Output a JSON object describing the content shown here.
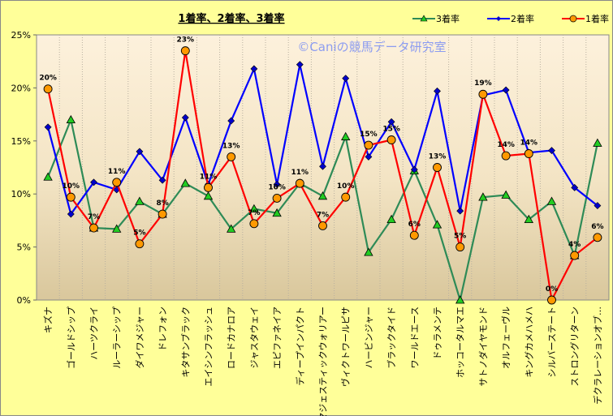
{
  "chart_data": {
    "type": "line",
    "title": "1着率、2着率、3着率",
    "watermark": "©Caniの競馬データ研究室",
    "xlabel": "",
    "ylabel": "",
    "ylim": [
      0,
      25
    ],
    "yticks": [
      "0%",
      "5%",
      "10%",
      "15%",
      "20%",
      "25%"
    ],
    "grid": "vertical dotted",
    "legend_position": "top-right",
    "categories": [
      "キズナ",
      "ゴールドシップ",
      "ハーツクライ",
      "ルーラーシップ",
      "ダイワメジャー",
      "ドレフォン",
      "キタサンブラック",
      "エイシンフラッシュ",
      "ロードカナロア",
      "ジャスタウェイ",
      "エピファネイア",
      "ディープインパクト",
      "マジェスティックウォリアー",
      "ヴィクトワールピサ",
      "ハービンジャー",
      "ブラックタイド",
      "ワールドエース",
      "ドゥラメンテ",
      "ホッコータルマエ",
      "サトノダイヤモンド",
      "オルフェーヴル",
      "キングカメハメハ",
      "シルバーステート",
      "ストロングリターン",
      "デクラレーションオブ…"
    ],
    "series": [
      {
        "name": "3着率",
        "color": "#2e8b57",
        "marker": "triangle",
        "marker_color": "#22cc22",
        "values": [
          11.6,
          17.0,
          6.8,
          6.7,
          9.3,
          8.1,
          11.0,
          9.8,
          6.7,
          8.6,
          8.2,
          11.0,
          9.8,
          15.4,
          4.5,
          7.6,
          12.2,
          7.1,
          0.0,
          9.7,
          9.9,
          7.6,
          9.3,
          4.2,
          14.8
        ]
      },
      {
        "name": "2着率",
        "color": "#0000ff",
        "marker": "diamond",
        "marker_color": "#0000cc",
        "values": [
          16.3,
          8.1,
          11.1,
          10.4,
          14.0,
          11.3,
          17.2,
          10.9,
          16.9,
          21.8,
          10.9,
          22.2,
          12.6,
          20.9,
          13.5,
          16.8,
          12.3,
          19.7,
          8.4,
          19.3,
          19.8,
          13.9,
          14.1,
          10.6,
          8.9
        ]
      },
      {
        "name": "1着率",
        "color": "#ff0000",
        "marker": "circle",
        "marker_color": "#ff9900",
        "values": [
          19.9,
          9.7,
          6.8,
          11.1,
          5.3,
          8.1,
          23.5,
          10.6,
          13.5,
          7.2,
          9.6,
          11.0,
          7.0,
          9.7,
          14.6,
          15.1,
          6.1,
          12.5,
          5.0,
          19.4,
          13.6,
          13.8,
          0.0,
          4.2,
          5.9
        ],
        "data_labels": [
          "20%",
          "10%",
          "7%",
          "11%",
          "5%",
          "8%",
          "23%",
          "11%",
          "13%",
          "7%",
          "10%",
          "11%",
          "7%",
          "10%",
          "15%",
          "15%",
          "6%",
          "13%",
          "5%",
          "19%",
          "14%",
          "14%",
          "0%",
          "4%",
          "6%"
        ]
      }
    ]
  }
}
